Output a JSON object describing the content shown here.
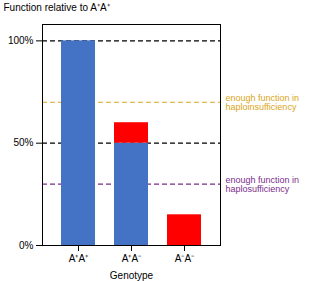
{
  "chart_data": {
    "type": "bar",
    "stacked": true,
    "categories": [
      "A⁺A⁺",
      "A⁺A⁻",
      "A⁻A⁻"
    ],
    "series": [
      {
        "color": "#4472C4",
        "values": [
          100,
          50,
          0
        ]
      },
      {
        "color": "#FF0000",
        "values": [
          0,
          10,
          15
        ]
      }
    ],
    "xlabel": "Genotype",
    "ylabel": "Function relative to A⁺A⁺",
    "ylim": [
      0,
      108
    ],
    "yticks": [
      {
        "value": 0,
        "label": "0%"
      },
      {
        "value": 50,
        "label": "50%"
      },
      {
        "value": 100,
        "label": "100%"
      }
    ],
    "reference_lines": [
      {
        "y": 100,
        "color": "#000000",
        "line_style": "dashed"
      },
      {
        "y": 50,
        "color": "#000000",
        "line_style": "dashed"
      },
      {
        "y": 70,
        "color": "#DAA520",
        "line_style": "dashed",
        "label": "enough function in\nhaploinsufficiency"
      },
      {
        "y": 30,
        "color": "#7B2D8B",
        "line_style": "dashed",
        "label": "enough function in\nhaplosufficiency"
      }
    ]
  }
}
